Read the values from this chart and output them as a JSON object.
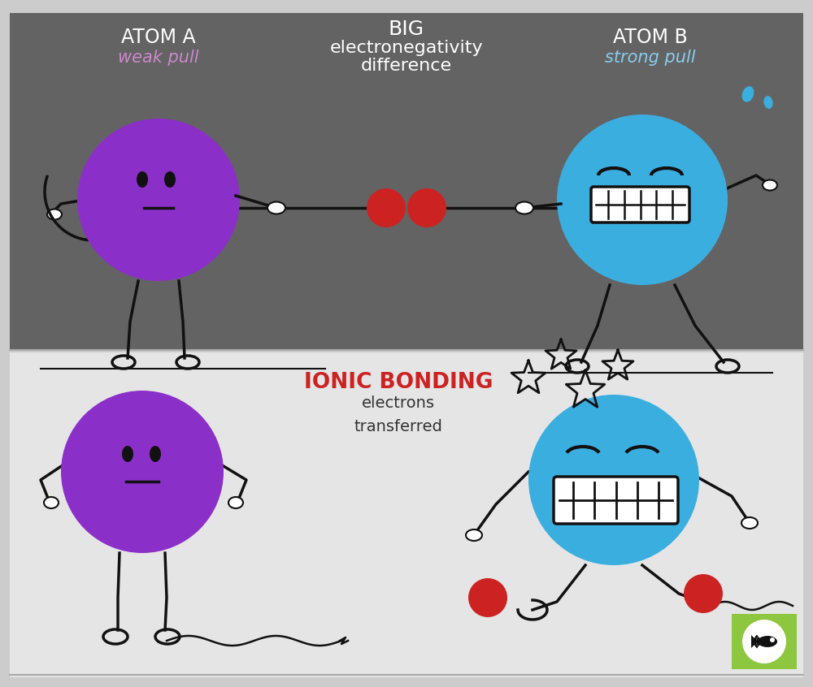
{
  "top_bg_color": "#636363",
  "bottom_bg_color": "#e5e5e5",
  "outer_bg_color": "#cccccc",
  "atom_a_color": "#8B2FC9",
  "atom_b_color": "#3BAEE0",
  "electron_color": "#CC2222",
  "atom_a_label": "ATOM A",
  "atom_b_label": "ATOM B",
  "weak_pull_label": "weak pull",
  "strong_pull_label": "strong pull",
  "big_label": "BIG",
  "electro_label": "electronegativity",
  "diff_label": "difference",
  "ionic_label": "IONIC BONDING",
  "electrons_label": "electrons\ntransferred",
  "title_color": "#ffffff",
  "weak_pull_color": "#CC88CC",
  "strong_pull_color": "#88CCEE",
  "ionic_color": "#CC2222",
  "electrons_color": "#333333",
  "logo_bg_color": "#8DC63F",
  "line_color": "#111111",
  "white": "#ffffff",
  "panel_border": "#aaaaaa"
}
